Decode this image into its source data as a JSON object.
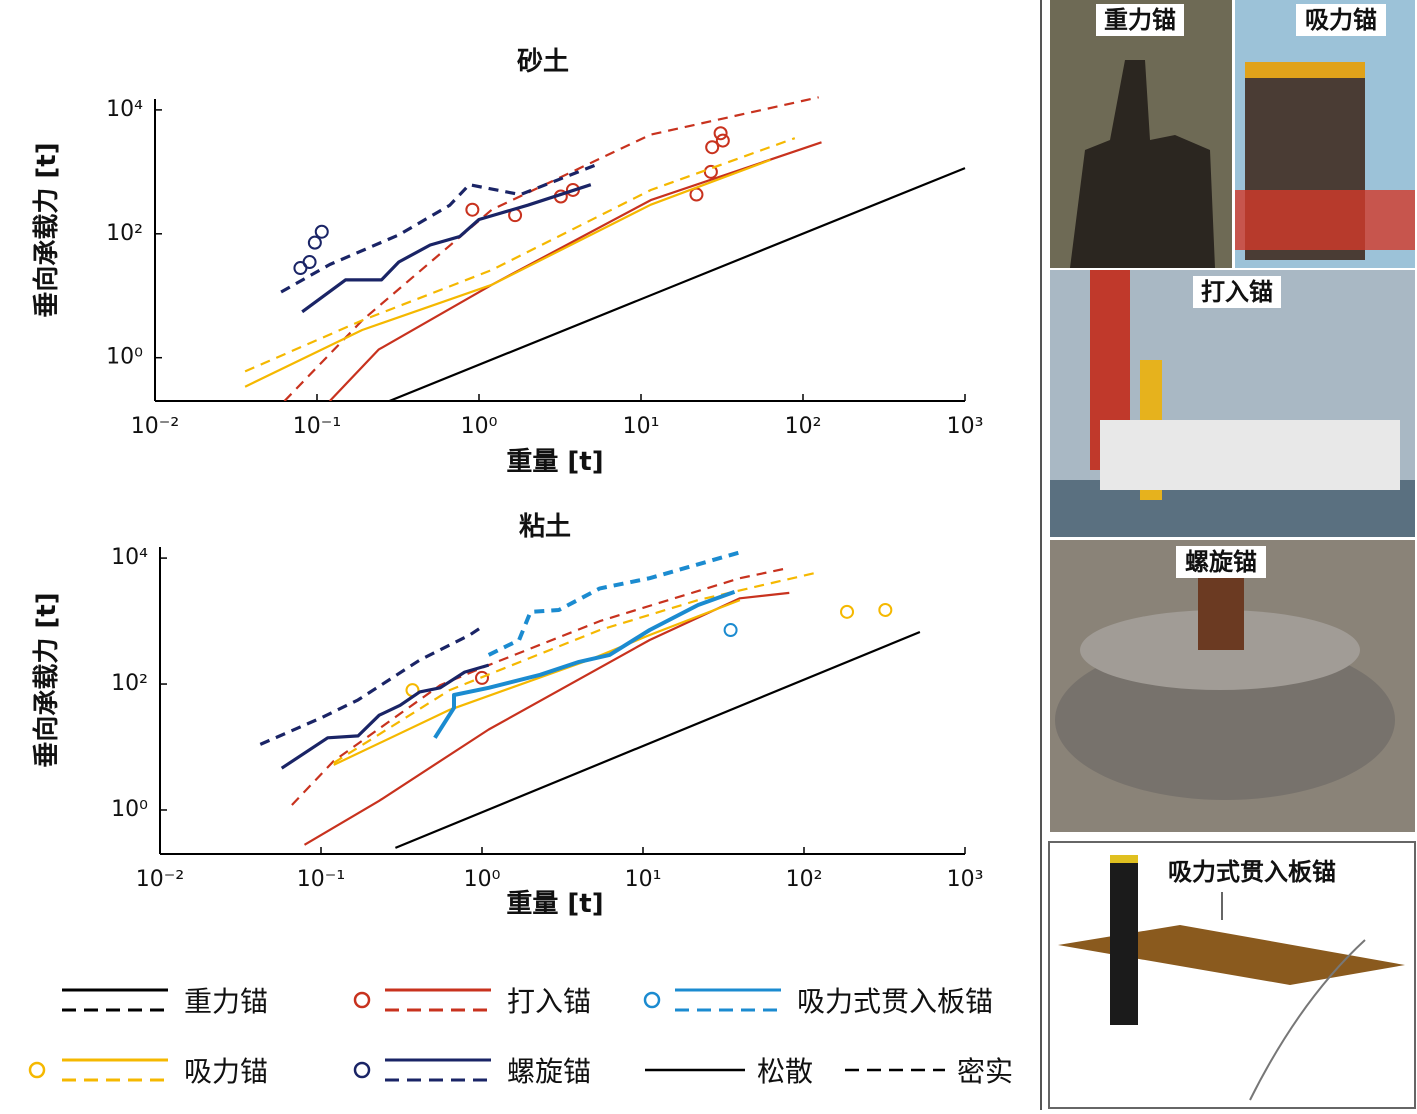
{
  "chart_data": [
    {
      "type": "line",
      "title": "砂土",
      "xlabel": "重量 [t]",
      "ylabel": "垂向承载力 [t]",
      "xscale": "log",
      "yscale": "log",
      "xlim": [
        0.01,
        1000
      ],
      "ylim": [
        0.2,
        15000
      ],
      "xticks": [
        {
          "value": 0.01,
          "label": "10⁻²"
        },
        {
          "value": 0.1,
          "label": "10⁻¹"
        },
        {
          "value": 1,
          "label": "10⁰"
        },
        {
          "value": 10,
          "label": "10¹"
        },
        {
          "value": 100,
          "label": "10²"
        },
        {
          "value": 1000,
          "label": "10³"
        }
      ],
      "yticks": [
        {
          "value": 1,
          "label": "10⁰"
        },
        {
          "value": 100,
          "label": "10²"
        },
        {
          "value": 10000,
          "label": "10⁴"
        }
      ],
      "series": [
        {
          "name": "重力锚",
          "color": "#000000",
          "style": "solid",
          "x": [
            0.28,
            1000
          ],
          "y": [
            0.2,
            1150
          ]
        },
        {
          "name": "打入锚",
          "color": "#c8321e",
          "style": "solid",
          "x": [
            0.12,
            0.24,
            1.2,
            11.5,
            130
          ],
          "y": [
            0.2,
            1.35,
            15,
            350,
            3000
          ]
        },
        {
          "name": "打入锚",
          "color": "#c8321e",
          "style": "dashed",
          "x": [
            0.063,
            0.19,
            1.2,
            11.5,
            125
          ],
          "y": [
            0.2,
            4,
            245,
            4000,
            16000
          ]
        },
        {
          "name": "打入锚",
          "color": "#c8321e",
          "style": "markers",
          "x": [
            0.91,
            1.67,
            3.2,
            3.8,
            22,
            27,
            27.5,
            32,
            31
          ],
          "y": [
            245,
            200,
            400,
            510,
            430,
            1000,
            2500,
            3200,
            4200
          ]
        },
        {
          "name": "吸力锚",
          "color": "#f5b800",
          "style": "solid",
          "x": [
            0.036,
            0.19,
            1.2,
            11.5,
            63
          ],
          "y": [
            0.34,
            2.8,
            15,
            295,
            1560
          ]
        },
        {
          "name": "吸力锚",
          "color": "#f5b800",
          "style": "dashed",
          "x": [
            0.036,
            0.19,
            1.2,
            11.5,
            89
          ],
          "y": [
            0.6,
            4,
            26,
            510,
            3500
          ]
        },
        {
          "name": "螺旋锚",
          "color": "#1a2466",
          "style": "solid",
          "x": [
            0.081,
            0.15,
            0.25,
            0.32,
            0.5,
            0.76,
            1.0,
            2.0,
            4.9
          ],
          "y": [
            5.5,
            18,
            18,
            35,
            66,
            90,
            170,
            290,
            620
          ]
        },
        {
          "name": "螺旋锚",
          "color": "#1a2466",
          "style": "dashed",
          "x": [
            0.06,
            0.12,
            0.32,
            0.66,
            0.87,
            1.8,
            5.3
          ],
          "y": [
            11.5,
            32,
            96,
            290,
            620,
            430,
            1300
          ]
        },
        {
          "name": "螺旋锚",
          "color": "#1a2466",
          "style": "markers",
          "x": [
            0.079,
            0.09,
            0.097,
            0.107
          ],
          "y": [
            28,
            35,
            72,
            108
          ]
        }
      ]
    },
    {
      "type": "line",
      "title": "粘土",
      "xlabel": "重量 [t]",
      "ylabel": "垂向承载力 [t]",
      "xscale": "log",
      "yscale": "log",
      "xlim": [
        0.01,
        1000
      ],
      "ylim": [
        0.2,
        15000
      ],
      "xticks": [
        {
          "value": 0.01,
          "label": "10⁻²"
        },
        {
          "value": 0.1,
          "label": "10⁻¹"
        },
        {
          "value": 1,
          "label": "10⁰"
        },
        {
          "value": 10,
          "label": "10¹"
        },
        {
          "value": 100,
          "label": "10²"
        },
        {
          "value": 1000,
          "label": "10³"
        }
      ],
      "yticks": [
        {
          "value": 1,
          "label": "10⁰"
        },
        {
          "value": 100,
          "label": "10²"
        },
        {
          "value": 10000,
          "label": "10⁴"
        }
      ],
      "series": [
        {
          "name": "重力锚",
          "color": "#000000",
          "style": "solid",
          "x": [
            0.29,
            525
          ],
          "y": [
            0.25,
            670
          ]
        },
        {
          "name": "打入锚",
          "color": "#c8321e",
          "style": "solid",
          "x": [
            0.079,
            0.23,
            1.1,
            11,
            40,
            81
          ],
          "y": [
            0.28,
            1.4,
            19,
            500,
            2300,
            2800
          ]
        },
        {
          "name": "打入锚",
          "color": "#c8321e",
          "style": "dashed",
          "x": [
            0.066,
            0.12,
            0.55,
            1.1,
            5.4,
            40,
            81
          ],
          "y": [
            1.2,
            6,
            96,
            200,
            1000,
            4800,
            7000
          ]
        },
        {
          "name": "打入锚",
          "color": "#c8321e",
          "style": "markers",
          "x": [
            1.0
          ],
          "y": [
            125
          ]
        },
        {
          "name": "吸力锚",
          "color": "#f5b800",
          "style": "solid",
          "x": [
            0.12,
            0.63,
            4.6,
            11,
            40
          ],
          "y": [
            5.2,
            39,
            240,
            600,
            2150
          ]
        },
        {
          "name": "吸力锚",
          "color": "#f5b800",
          "style": "dashed",
          "x": [
            0.12,
            0.63,
            5.4,
            22,
            117
          ],
          "y": [
            5.6,
            80,
            720,
            2150,
            5800
          ]
        },
        {
          "name": "吸力锚",
          "color": "#f5b800",
          "style": "markers",
          "x": [
            0.37,
            185,
            320
          ],
          "y": [
            80,
            1400,
            1500
          ]
        },
        {
          "name": "螺旋锚",
          "color": "#1a2466",
          "style": "solid",
          "x": [
            0.057,
            0.11,
            0.17,
            0.23,
            0.31,
            0.41,
            0.55,
            0.78,
            1.1
          ],
          "y": [
            4.6,
            14,
            15,
            32,
            46,
            75,
            87,
            155,
            200
          ]
        },
        {
          "name": "螺旋锚",
          "color": "#1a2466",
          "style": "dashed",
          "x": [
            0.042,
            0.1,
            0.17,
            0.41,
            0.84,
            0.97
          ],
          "y": [
            11,
            29,
            56,
            240,
            600,
            770
          ]
        },
        {
          "name": "吸力式贯入板锚",
          "color": "#1b8bd0",
          "style": "solid",
          "x": [
            0.51,
            0.67,
            0.67,
            1.1,
            2.3,
            4.0,
            6.2,
            11,
            22,
            37
          ],
          "y": [
            14,
            42,
            67,
            87,
            140,
            225,
            290,
            720,
            1800,
            2900
          ]
        },
        {
          "name": "吸力式贯入板锚",
          "color": "#1b8bd0",
          "style": "dashed",
          "x": [
            1.1,
            1.7,
            2.0,
            3.0,
            5.4,
            11,
            30,
            43
          ],
          "y": [
            290,
            500,
            1400,
            1500,
            3300,
            4800,
            10000,
            13000
          ]
        },
        {
          "name": "吸力式贯入板锚",
          "color": "#1b8bd0",
          "style": "markers",
          "x": [
            35
          ],
          "y": [
            720
          ]
        }
      ]
    }
  ],
  "legend": {
    "items": [
      {
        "name": "重力锚",
        "color": "#000000",
        "marker": false
      },
      {
        "name": "打入锚",
        "color": "#c8321e",
        "marker": true
      },
      {
        "name": "吸力式贯入板锚",
        "color": "#1b8bd0",
        "marker": true
      },
      {
        "name": "吸力锚",
        "color": "#f5b800",
        "marker": true
      },
      {
        "name": "螺旋锚",
        "color": "#1a2466",
        "marker": true
      }
    ],
    "styles": [
      {
        "name": "松散",
        "dash": false
      },
      {
        "name": "密实",
        "dash": true
      }
    ]
  },
  "photos": [
    {
      "label": "重力锚"
    },
    {
      "label": "吸力锚"
    },
    {
      "label": "打入锚"
    },
    {
      "label": "螺旋锚"
    },
    {
      "label": "吸力式贯入板锚"
    }
  ]
}
